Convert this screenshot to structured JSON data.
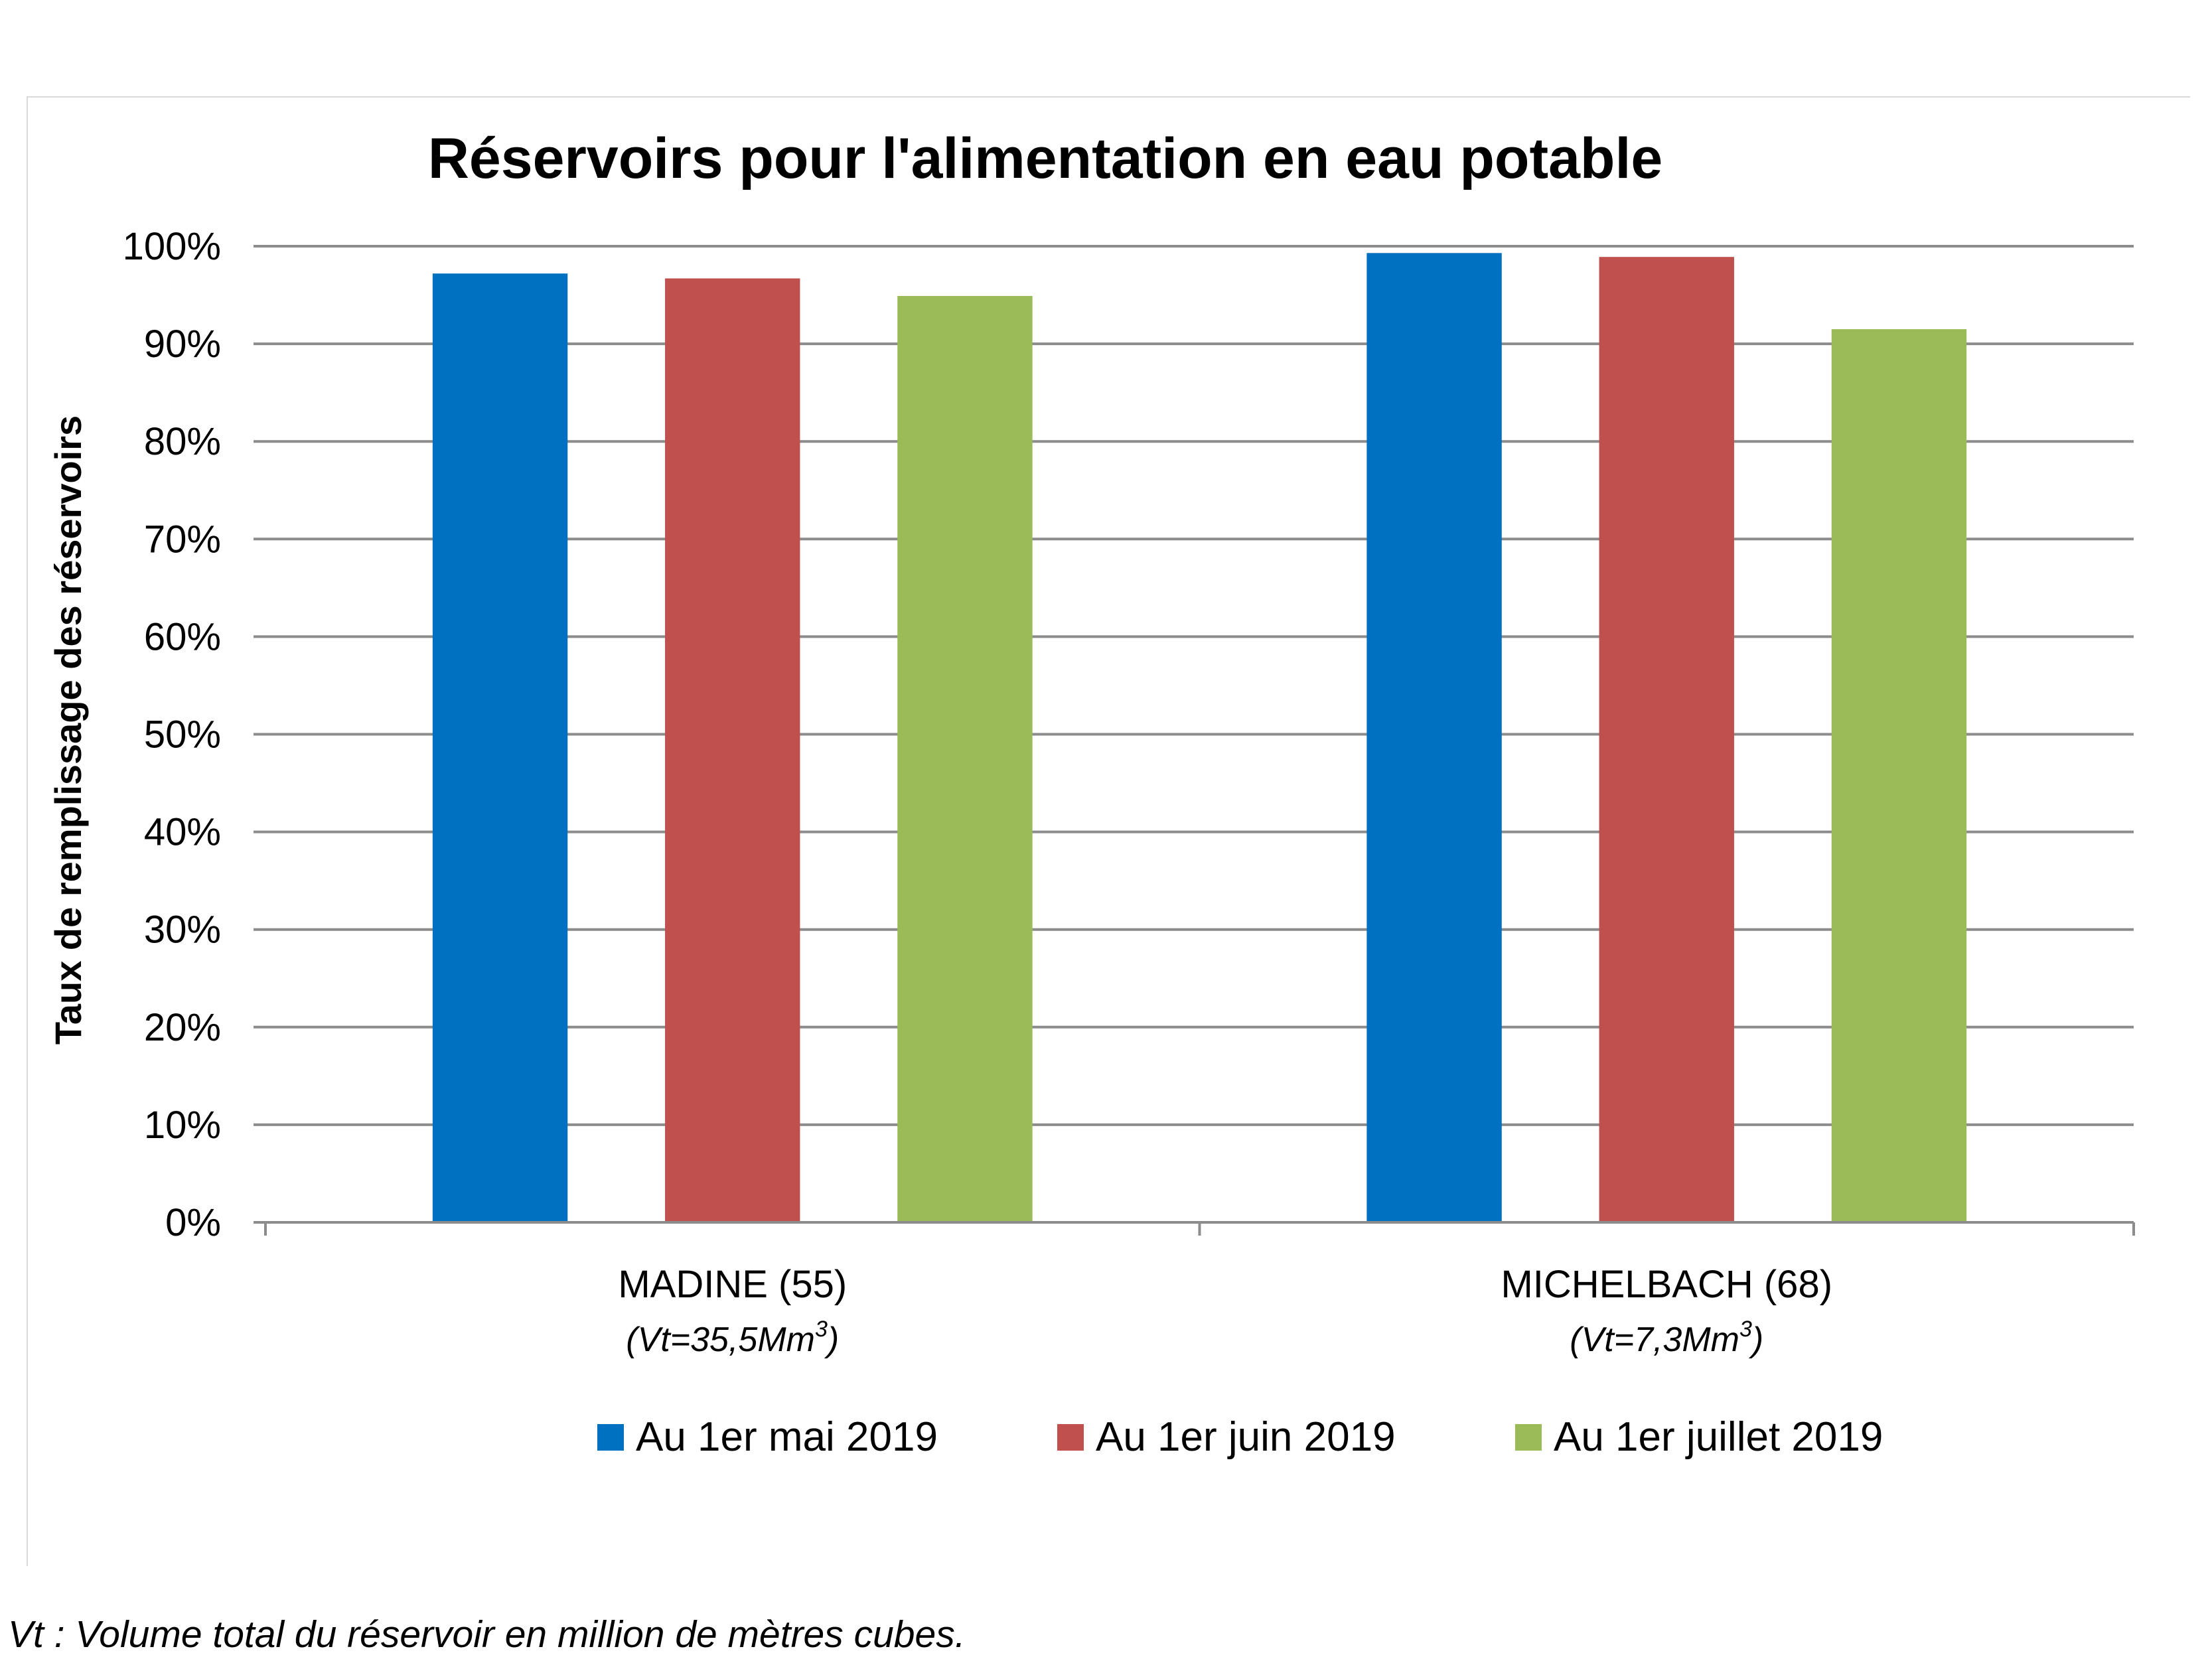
{
  "chart_data": {
    "type": "bar",
    "title": "Réservoirs pour l'alimentation en eau potable",
    "ylabel": "Taux de remplissage des réservoirs",
    "xlabel": "",
    "ylim": [
      0,
      100
    ],
    "yticks": [
      "0%",
      "10%",
      "20%",
      "30%",
      "40%",
      "50%",
      "60%",
      "70%",
      "80%",
      "90%",
      "100%"
    ],
    "categories": [
      "MADINE (55)",
      "MICHELBACH (68)"
    ],
    "category_notes": [
      {
        "text": "(Vt=35,5Mm",
        "sup": "3",
        "close": ")"
      },
      {
        "text": "(Vt=7,3Mm",
        "sup": "3",
        "close": ")"
      }
    ],
    "series": [
      {
        "name": "Au 1er mai 2019",
        "color": "#0070c0",
        "values": [
          97.2,
          99.3
        ]
      },
      {
        "name": "Au 1er juin 2019",
        "color": "#c0504d",
        "values": [
          96.7,
          98.9
        ]
      },
      {
        "name": "Au 1er juillet 2019",
        "color": "#9bbb59",
        "values": [
          94.9,
          91.5
        ]
      }
    ],
    "grid": true,
    "legend_position": "bottom"
  },
  "footnote": "Vt : Volume total du réservoir en million de mètres cubes."
}
